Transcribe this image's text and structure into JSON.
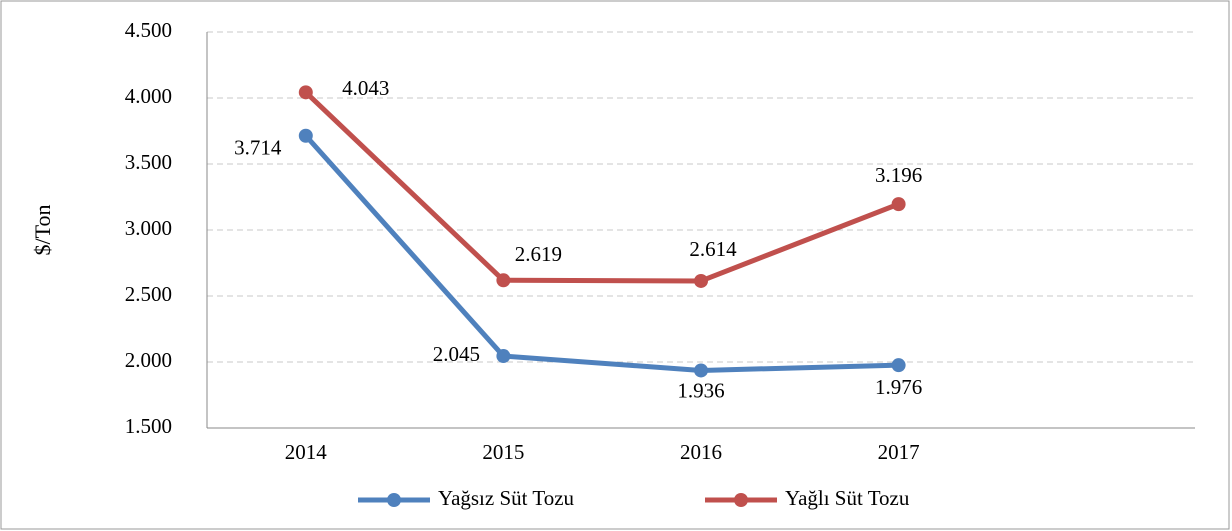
{
  "chart_data": {
    "type": "line",
    "y_label": "$/Ton",
    "categories": [
      "2014",
      "2015",
      "2016",
      "2017",
      null
    ],
    "series": [
      {
        "name": "Yağsız Süt Tozu",
        "color": "#4f81bd",
        "values": [
          3714,
          2045,
          1936,
          1976,
          null
        ],
        "value_labels": [
          "3.714",
          "2.045",
          "1.936",
          "1.976",
          null
        ]
      },
      {
        "name": "Yağlı Süt Tozu",
        "color": "#c0504d",
        "values": [
          4043,
          2619,
          2614,
          3196,
          null
        ],
        "value_labels": [
          "4.043",
          "2.619",
          "2.614",
          "3.196",
          null
        ]
      }
    ],
    "ylim": [
      1500,
      4500
    ],
    "yticks": [
      {
        "value": 1500,
        "label": "1.500"
      },
      {
        "value": 2000,
        "label": "2.000"
      },
      {
        "value": 2500,
        "label": "2.500"
      },
      {
        "value": 3000,
        "label": "3.000"
      },
      {
        "value": 3500,
        "label": "3.500"
      },
      {
        "value": 4000,
        "label": "4.000"
      },
      {
        "value": 4500,
        "label": "4.500"
      }
    ],
    "grid": true,
    "legend": "bottom"
  }
}
